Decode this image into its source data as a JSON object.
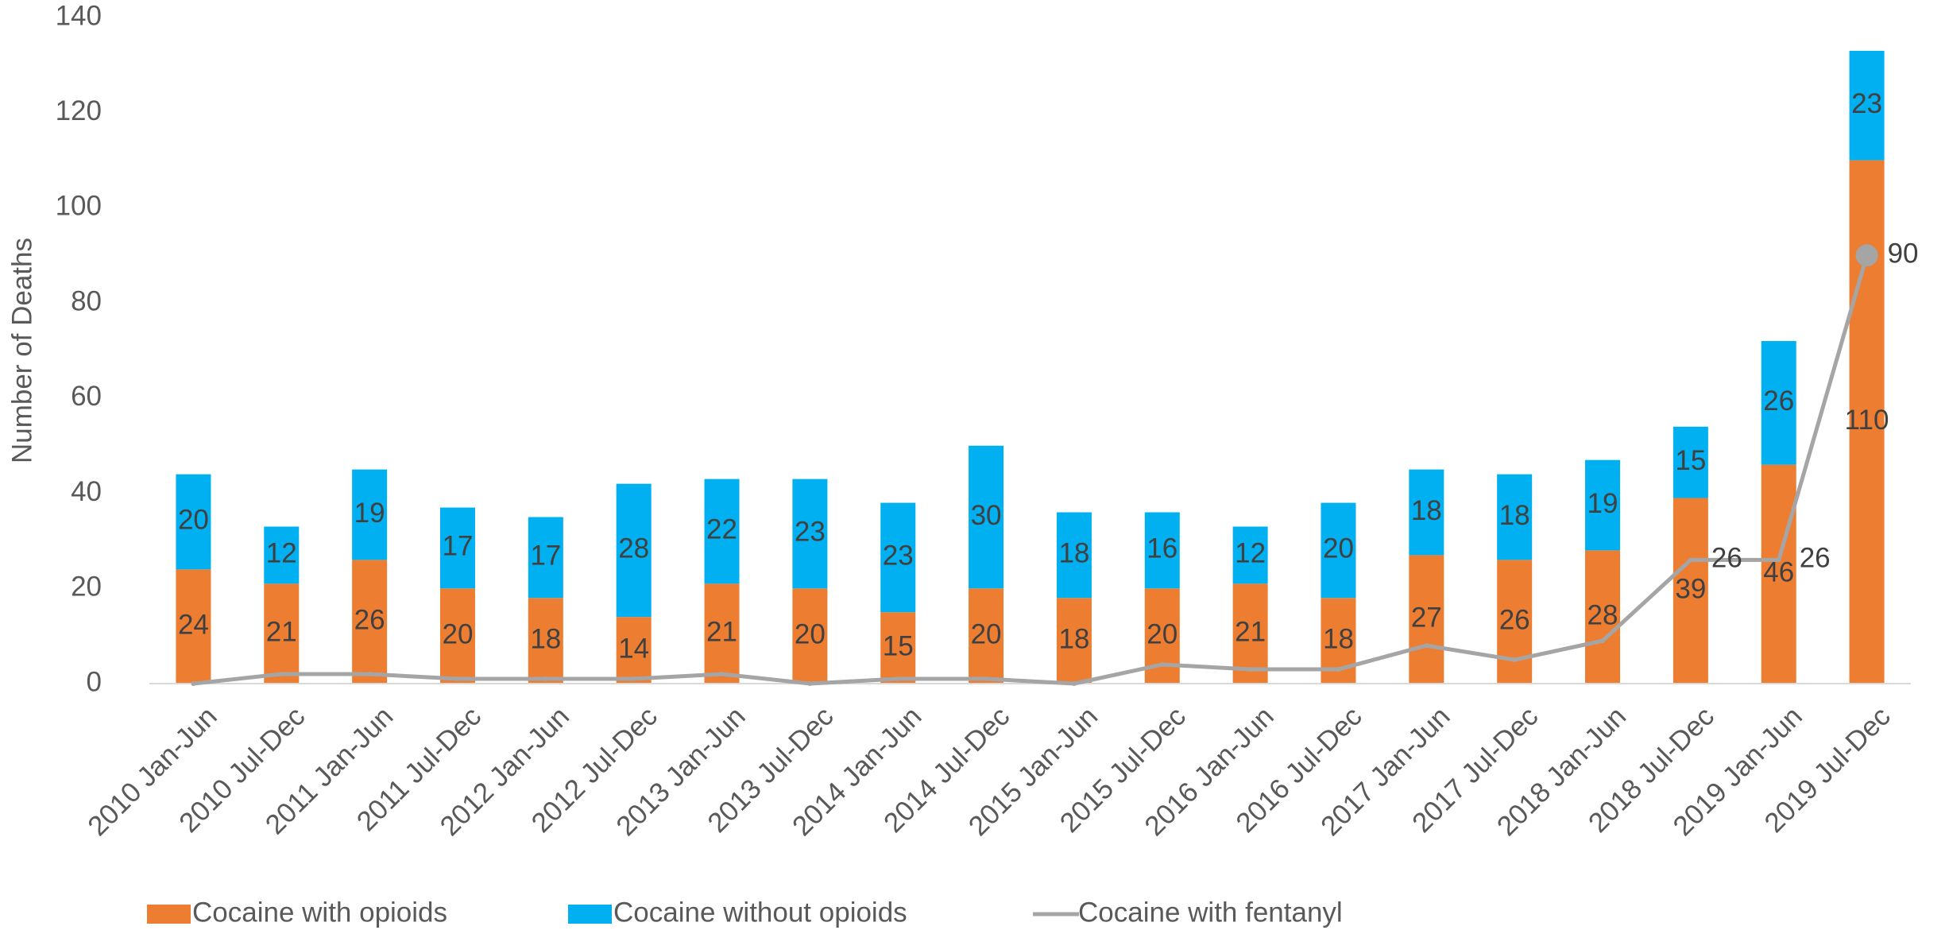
{
  "chart_data": {
    "type": "bar",
    "stacked": true,
    "title": "",
    "xlabel": "",
    "ylabel": "Number of Deaths",
    "ylim": [
      0,
      140
    ],
    "yticks": [
      0,
      20,
      40,
      60,
      80,
      100,
      120,
      140
    ],
    "grid": false,
    "legend_position": "bottom",
    "categories": [
      "2010 Jan-Jun",
      "2010 Jul-Dec",
      "2011 Jan-Jun",
      "2011 Jul-Dec",
      "2012 Jan-Jun",
      "2012 Jul-Dec",
      "2013 Jan-Jun",
      "2013 Jul-Dec",
      "2014 Jan-Jun",
      "2014 Jul-Dec",
      "2015 Jan-Jun",
      "2015 Jul-Dec",
      "2016 Jan-Jun",
      "2016 Jul-Dec",
      "2017 Jan-Jun",
      "2017 Jul-Dec",
      "2018 Jan-Jun",
      "2018 Jul-Dec",
      "2019 Jan-Jun",
      "2019 Jul-Dec"
    ],
    "series": [
      {
        "name": "Cocaine with opioids",
        "type": "bar",
        "color": "#ED7D31",
        "values": [
          24,
          21,
          26,
          20,
          18,
          14,
          21,
          20,
          15,
          20,
          18,
          20,
          21,
          18,
          27,
          26,
          28,
          39,
          46,
          110
        ]
      },
      {
        "name": "Cocaine without opioids",
        "type": "bar",
        "color": "#00B0F0",
        "values": [
          20,
          12,
          19,
          17,
          17,
          28,
          22,
          23,
          23,
          30,
          18,
          16,
          12,
          20,
          18,
          18,
          19,
          15,
          26,
          23
        ]
      },
      {
        "name": "Cocaine with fentanyl",
        "type": "line",
        "color": "#A5A5A5",
        "values": [
          0,
          2,
          2,
          1,
          1,
          1,
          2,
          0,
          1,
          1,
          0,
          4,
          3,
          3,
          8,
          5,
          9,
          26,
          26,
          90
        ],
        "labeled_points": [
          {
            "index": 17,
            "label": "26"
          },
          {
            "index": 18,
            "label": "26"
          },
          {
            "index": 19,
            "label": "90"
          }
        ]
      }
    ]
  }
}
